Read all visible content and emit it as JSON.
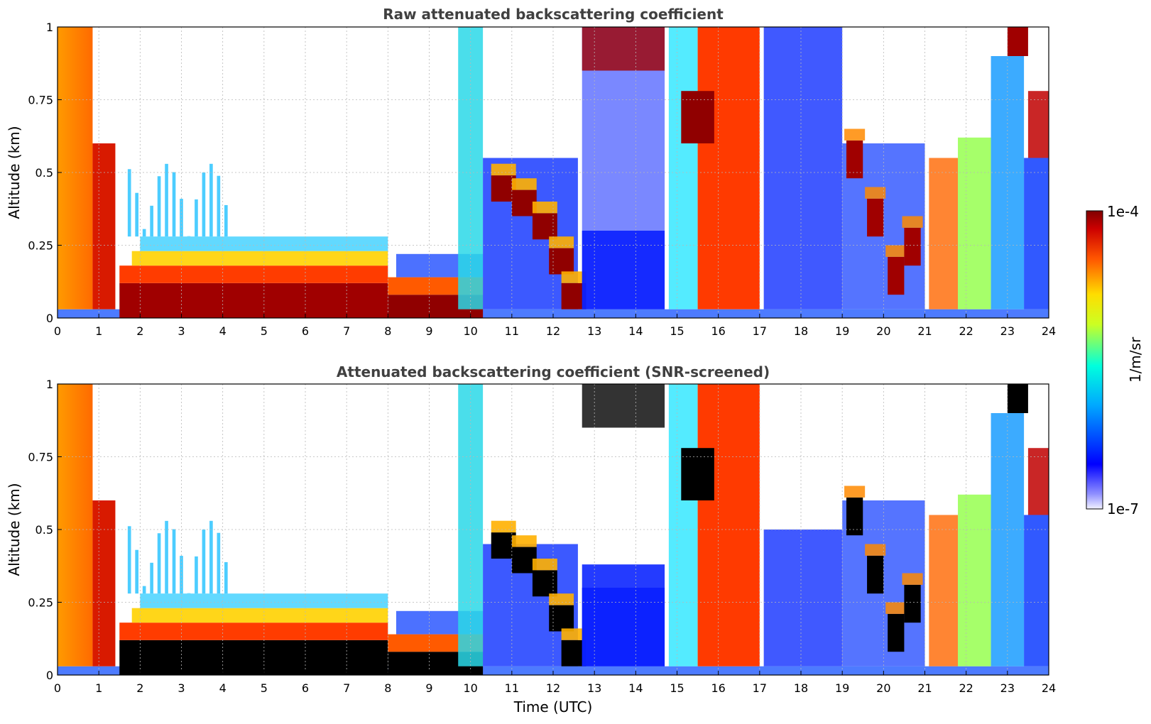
{
  "chart_data": [
    {
      "type": "heatmap",
      "title": "Raw attenuated backscattering coefficient",
      "xlabel": "",
      "ylabel": "Altitude (km)",
      "xlim": [
        0,
        24
      ],
      "ylim": [
        0,
        1
      ],
      "xticks": [
        "0",
        "1",
        "2",
        "3",
        "4",
        "5",
        "6",
        "7",
        "8",
        "9",
        "10",
        "11",
        "12",
        "13",
        "14",
        "15",
        "16",
        "17",
        "18",
        "19",
        "20",
        "21",
        "22",
        "23",
        "24"
      ],
      "yticks": [
        "0",
        "0.25",
        "0.5",
        "0.75",
        "1"
      ],
      "grid": true,
      "colormap": "jet",
      "color_scale": "log",
      "color_range": [
        "1e-7",
        "1e-4"
      ],
      "color_units": "1/m/sr"
    },
    {
      "type": "heatmap",
      "title": "Attenuated backscattering coefficient (SNR-screened)",
      "xlabel": "Time (UTC)",
      "ylabel": "Altitude (km)",
      "xlim": [
        0,
        24
      ],
      "ylim": [
        0,
        1
      ],
      "xticks": [
        "0",
        "1",
        "2",
        "3",
        "4",
        "5",
        "6",
        "7",
        "8",
        "9",
        "10",
        "11",
        "12",
        "13",
        "14",
        "15",
        "16",
        "17",
        "18",
        "19",
        "20",
        "21",
        "22",
        "23",
        "24"
      ],
      "yticks": [
        "0",
        "0.25",
        "0.5",
        "0.75",
        "1"
      ],
      "grid": true,
      "colormap": "jet",
      "color_scale": "log",
      "color_range": [
        "1e-7",
        "1e-4"
      ],
      "color_units": "1/m/sr"
    }
  ],
  "colorbar": {
    "max_label": "1e-4",
    "min_label": "1e-7",
    "units": "1/m/sr"
  }
}
